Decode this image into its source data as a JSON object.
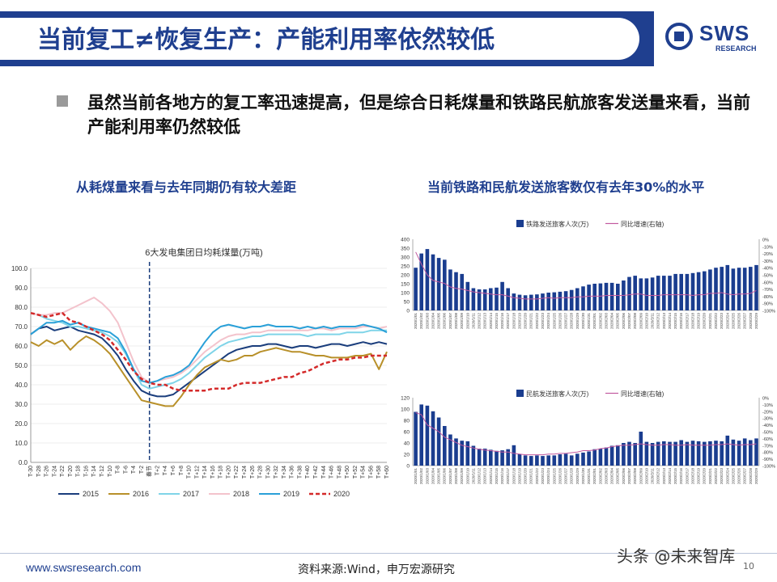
{
  "header": {
    "title": "当前复工≠恢复生产：产能利用率依然较低",
    "logo_text": "SWS",
    "logo_sub": "RESEARCH"
  },
  "bullet": {
    "text": "虽然当前各地方的复工率迅速提高，但是综合日耗煤量和铁路民航旅客发送量来看，当前产能利用率仍然较低"
  },
  "left_subtitle": "从耗煤量来看与去年同期仍有较大差距",
  "right_subtitle": "当前铁路和民航发送旅客数仅有去年30%的水平",
  "footer": {
    "url": "www.swsresearch.com",
    "source": "资料来源:Wind，申万宏源研究",
    "page": "10",
    "watermark": "头条 @未来智库"
  },
  "colors": {
    "brand": "#1f3f8f",
    "bar": "#1a3d8f",
    "yoy_line": "#c25a9f"
  },
  "chart_data": [
    {
      "type": "line",
      "title": "6大发电集团日均耗煤量(万吨)",
      "x": [
        "T-30",
        "T-28",
        "T-26",
        "T-24",
        "T-22",
        "T-20",
        "T-18",
        "T-16",
        "T-14",
        "T-12",
        "T-10",
        "T-8",
        "T-6",
        "T-4",
        "T-2",
        "春节",
        "T+2",
        "T+4",
        "T+6",
        "T+8",
        "T+10",
        "T+12",
        "T+14",
        "T+16",
        "T+18",
        "T+20",
        "T+22",
        "T+24",
        "T+26",
        "T+28",
        "T+30",
        "T+32",
        "T+34",
        "T+36",
        "T+38",
        "T+40",
        "T+42",
        "T+44",
        "T+46",
        "T+48",
        "T+50",
        "T+52",
        "T+54",
        "T+56",
        "T+58",
        "T+60"
      ],
      "x_tick_labels": [
        "T-30",
        "T-28",
        "T-26",
        "T-24",
        "T-22",
        "T-20",
        "T-18",
        "T-16",
        "T-14",
        "T-12",
        "T-10",
        "T-8",
        "T-6",
        "T-4",
        "T-2",
        "春节",
        "T+2",
        "T+4",
        "T+6",
        "T+8",
        "T+10",
        "T+12",
        "T+14",
        "T+16",
        "T+18",
        "T+20",
        "T+22",
        "T+24",
        "T+26",
        "T+28",
        "T+30",
        "T+32",
        "T+34",
        "T+36",
        "T+38",
        "T+40",
        "T+42",
        "T+44",
        "T+46",
        "T+48",
        "T+50",
        "T+52",
        "T+54",
        "T+56",
        "T+58",
        "T+60"
      ],
      "y_ticks": [
        "0.0",
        "10.0",
        "20.0",
        "30.0",
        "40.0",
        "50.0",
        "60.0",
        "70.0",
        "80.0",
        "90.0",
        "100.0"
      ],
      "ylim": [
        0,
        100
      ],
      "legend_position": "bottom",
      "annotation": "春节 dashed vertical line",
      "series": [
        {
          "name": "2015",
          "color": "#1a3d7c",
          "dash": "",
          "width": 2,
          "values": [
            66,
            69,
            70,
            68,
            69,
            70,
            68,
            67,
            66,
            64,
            60,
            55,
            48,
            42,
            37,
            35,
            34,
            34,
            35,
            38,
            41,
            44,
            47,
            50,
            53,
            56,
            58,
            59,
            60,
            60,
            61,
            61,
            60,
            59,
            60,
            60,
            59,
            60,
            61,
            61,
            60,
            61,
            62,
            61,
            62,
            61
          ]
        },
        {
          "name": "2016",
          "color": "#b8902a",
          "dash": "",
          "width": 2,
          "values": [
            62,
            60,
            63,
            61,
            63,
            58,
            62,
            65,
            63,
            60,
            56,
            50,
            44,
            38,
            32,
            31,
            30,
            29,
            29,
            34,
            40,
            45,
            49,
            51,
            53,
            52,
            53,
            55,
            55,
            57,
            58,
            59,
            58,
            57,
            57,
            56,
            55,
            55,
            54,
            54,
            54,
            55,
            55,
            56,
            48,
            57
          ]
        },
        {
          "name": "2017",
          "color": "#7fd4e8",
          "dash": "",
          "width": 2,
          "values": [
            77,
            76,
            74,
            73,
            72,
            70,
            70,
            69,
            68,
            67,
            65,
            62,
            56,
            48,
            40,
            38,
            39,
            40,
            41,
            43,
            46,
            50,
            54,
            57,
            60,
            62,
            63,
            64,
            65,
            65,
            66,
            66,
            66,
            66,
            66,
            65,
            66,
            66,
            66,
            66,
            67,
            67,
            67,
            68,
            68,
            68
          ]
        },
        {
          "name": "2018",
          "color": "#f3c3cc",
          "dash": "",
          "width": 2,
          "values": [
            77,
            76,
            76,
            77,
            77,
            79,
            81,
            83,
            85,
            82,
            78,
            72,
            62,
            52,
            44,
            41,
            42,
            43,
            44,
            46,
            49,
            53,
            57,
            60,
            63,
            65,
            66,
            66,
            67,
            67,
            68,
            68,
            68,
            68,
            68,
            68,
            69,
            69,
            68,
            69,
            69,
            69,
            70,
            70,
            69,
            70
          ]
        },
        {
          "name": "2019",
          "color": "#2aa0d8",
          "dash": "",
          "width": 2,
          "values": [
            66,
            69,
            72,
            72,
            73,
            71,
            72,
            70,
            69,
            68,
            67,
            64,
            57,
            48,
            42,
            41,
            42,
            44,
            45,
            47,
            50,
            56,
            62,
            67,
            70,
            71,
            70,
            69,
            70,
            70,
            71,
            70,
            70,
            70,
            69,
            70,
            69,
            70,
            69,
            70,
            70,
            70,
            71,
            70,
            69,
            67
          ]
        },
        {
          "name": "2020",
          "color": "#d42a2a",
          "dash": "5,3",
          "width": 2.5,
          "values": [
            77,
            76,
            75,
            76,
            77,
            73,
            72,
            70,
            68,
            66,
            63,
            58,
            53,
            47,
            43,
            41,
            40,
            40,
            38,
            37,
            37,
            37,
            37,
            38,
            38,
            38,
            40,
            41,
            41,
            41,
            42,
            43,
            44,
            44,
            46,
            47,
            49,
            51,
            52,
            53,
            53,
            54,
            54,
            55,
            55,
            55
          ]
        }
      ]
    },
    {
      "type": "bar",
      "title": "",
      "legend": [
        "铁路发送旅客人次(万)",
        "同比增速(右轴)"
      ],
      "categories": [
        "2020/1/01",
        "2020/1/02",
        "2020/1/03",
        "2020/1/04",
        "2020/1/05",
        "2020/1/06",
        "2020/1/07",
        "2020/1/08",
        "2020/1/09",
        "2020/1/10",
        "2020/1/11",
        "2020/1/12",
        "2020/1/13",
        "2020/1/14",
        "2020/1/15",
        "2020/1/16",
        "2020/1/17",
        "2020/1/18",
        "2020/1/19",
        "2020/1/20",
        "2020/1/21",
        "2020/1/22",
        "2020/1/23",
        "2020/1/24",
        "2020/1/25",
        "2020/1/26",
        "2020/1/27",
        "2020/1/28",
        "2020/1/29",
        "2020/1/30",
        "2020/1/31",
        "2020/2/01",
        "2020/2/02",
        "2020/2/03",
        "2020/2/04",
        "2020/2/05",
        "2020/2/06",
        "2020/2/07",
        "2020/2/08",
        "2020/2/09",
        "2020/2/10",
        "2020/2/11",
        "2020/2/12",
        "2020/2/13",
        "2020/2/14",
        "2020/2/15",
        "2020/2/16",
        "2020/2/17",
        "2020/2/18",
        "2020/2/19",
        "2020/2/20",
        "2020/2/21",
        "2020/2/22",
        "2020/2/23",
        "2020/2/24",
        "2020/2/25",
        "2020/2/26",
        "2020/2/27",
        "2020/2/28",
        "2020/2/29"
      ],
      "y_ticks": [
        "0",
        "50",
        "100",
        "150",
        "200",
        "250",
        "300",
        "350",
        "400"
      ],
      "y2_ticks": [
        "-100%",
        "-90%",
        "-80%",
        "-70%",
        "-60%",
        "-50%",
        "-40%",
        "-30%",
        "-20%",
        "-10%",
        "0%"
      ],
      "ylim": [
        0,
        400
      ],
      "y2lim": [
        -100,
        0
      ],
      "series": [
        {
          "name": "铁路发送旅客人次(万)",
          "type": "bar",
          "values": [
            240,
            320,
            345,
            315,
            295,
            285,
            230,
            215,
            205,
            160,
            125,
            118,
            118,
            125,
            128,
            160,
            125,
            95,
            88,
            85,
            88,
            90,
            95,
            100,
            102,
            105,
            108,
            115,
            125,
            135,
            145,
            150,
            152,
            155,
            155,
            150,
            168,
            188,
            195,
            180,
            180,
            185,
            195,
            195,
            195,
            205,
            205,
            205,
            210,
            215,
            220,
            230,
            240,
            245,
            255,
            235,
            240,
            240,
            245,
            255
          ]
        },
        {
          "name": "同比增速(右轴)",
          "type": "line",
          "values": [
            -18,
            -35,
            -50,
            -58,
            -60,
            -62,
            -67,
            -69,
            -70,
            -72,
            -74,
            -75,
            -76,
            -77,
            -78,
            -78,
            -80,
            -82,
            -83,
            -84,
            -84,
            -84,
            -83,
            -82,
            -83,
            -82,
            -82,
            -82,
            -81,
            -81,
            -80,
            -80,
            -80,
            -79,
            -79,
            -79,
            -79,
            -78,
            -77,
            -77,
            -79,
            -79,
            -79,
            -78,
            -78,
            -78,
            -78,
            -78,
            -79,
            -78,
            -78,
            -76,
            -76,
            -75,
            -77,
            -78,
            -77,
            -77,
            -76,
            -72
          ]
        }
      ]
    },
    {
      "type": "bar",
      "title": "",
      "legend": [
        "民航发送旅客人次(万)",
        "同比增速(右轴)"
      ],
      "categories": [
        "2020/1/01",
        "2020/1/02",
        "2020/1/03",
        "2020/1/04",
        "2020/1/05",
        "2020/1/06",
        "2020/1/07",
        "2020/1/08",
        "2020/1/09",
        "2020/1/10",
        "2020/1/11",
        "2020/1/12",
        "2020/1/13",
        "2020/1/14",
        "2020/1/15",
        "2020/1/16",
        "2020/1/17",
        "2020/1/18",
        "2020/1/19",
        "2020/1/20",
        "2020/1/21",
        "2020/1/22",
        "2020/1/23",
        "2020/1/24",
        "2020/1/25",
        "2020/1/26",
        "2020/1/27",
        "2020/1/28",
        "2020/1/29",
        "2020/1/30",
        "2020/1/31",
        "2020/2/01",
        "2020/2/02",
        "2020/2/03",
        "2020/2/04",
        "2020/2/05",
        "2020/2/06",
        "2020/2/07",
        "2020/2/08",
        "2020/2/09",
        "2020/2/10",
        "2020/2/11",
        "2020/2/12",
        "2020/2/13",
        "2020/2/14",
        "2020/2/15",
        "2020/2/16",
        "2020/2/17",
        "2020/2/18",
        "2020/2/19",
        "2020/2/20",
        "2020/2/21",
        "2020/2/22",
        "2020/2/23",
        "2020/2/24",
        "2020/2/25",
        "2020/2/26",
        "2020/2/27",
        "2020/2/28",
        "2020/2/29"
      ],
      "y_ticks": [
        "0",
        "20",
        "40",
        "60",
        "80",
        "100",
        "120"
      ],
      "y2_ticks": [
        "-100%",
        "-90%",
        "-80%",
        "-70%",
        "-60%",
        "-50%",
        "-40%",
        "-30%",
        "-20%",
        "-10%",
        "0%"
      ],
      "ylim": [
        0,
        120
      ],
      "y2lim": [
        -100,
        0
      ],
      "series": [
        {
          "name": "民航发送旅客人次(万)",
          "type": "bar",
          "values": [
            95,
            108,
            106,
            96,
            85,
            70,
            55,
            48,
            44,
            43,
            35,
            30,
            30,
            28,
            26,
            27,
            29,
            36,
            20,
            18,
            17,
            18,
            17,
            18,
            18,
            20,
            21,
            18,
            21,
            23,
            25,
            29,
            30,
            32,
            35,
            36,
            40,
            42,
            40,
            60,
            42,
            40,
            42,
            43,
            42,
            42,
            45,
            42,
            44,
            43,
            42,
            43,
            44,
            43,
            53,
            46,
            44,
            48,
            45,
            48
          ]
        },
        {
          "name": "同比增速(右轴)",
          "type": "line",
          "values": [
            -22,
            -25,
            -40,
            -45,
            -50,
            -58,
            -62,
            -66,
            -70,
            -72,
            -74,
            -76,
            -77,
            -78,
            -79,
            -80,
            -80,
            -82,
            -83,
            -84,
            -84,
            -84,
            -84,
            -83,
            -83,
            -82,
            -82,
            -81,
            -80,
            -78,
            -78,
            -77,
            -75,
            -74,
            -72,
            -71,
            -70,
            -70,
            -69,
            -68,
            -69,
            -70,
            -70,
            -69,
            -69,
            -70,
            -70,
            -69,
            -70,
            -70,
            -70,
            -70,
            -69,
            -69,
            -68,
            -69,
            -70,
            -69,
            -69,
            -68
          ]
        }
      ]
    }
  ]
}
